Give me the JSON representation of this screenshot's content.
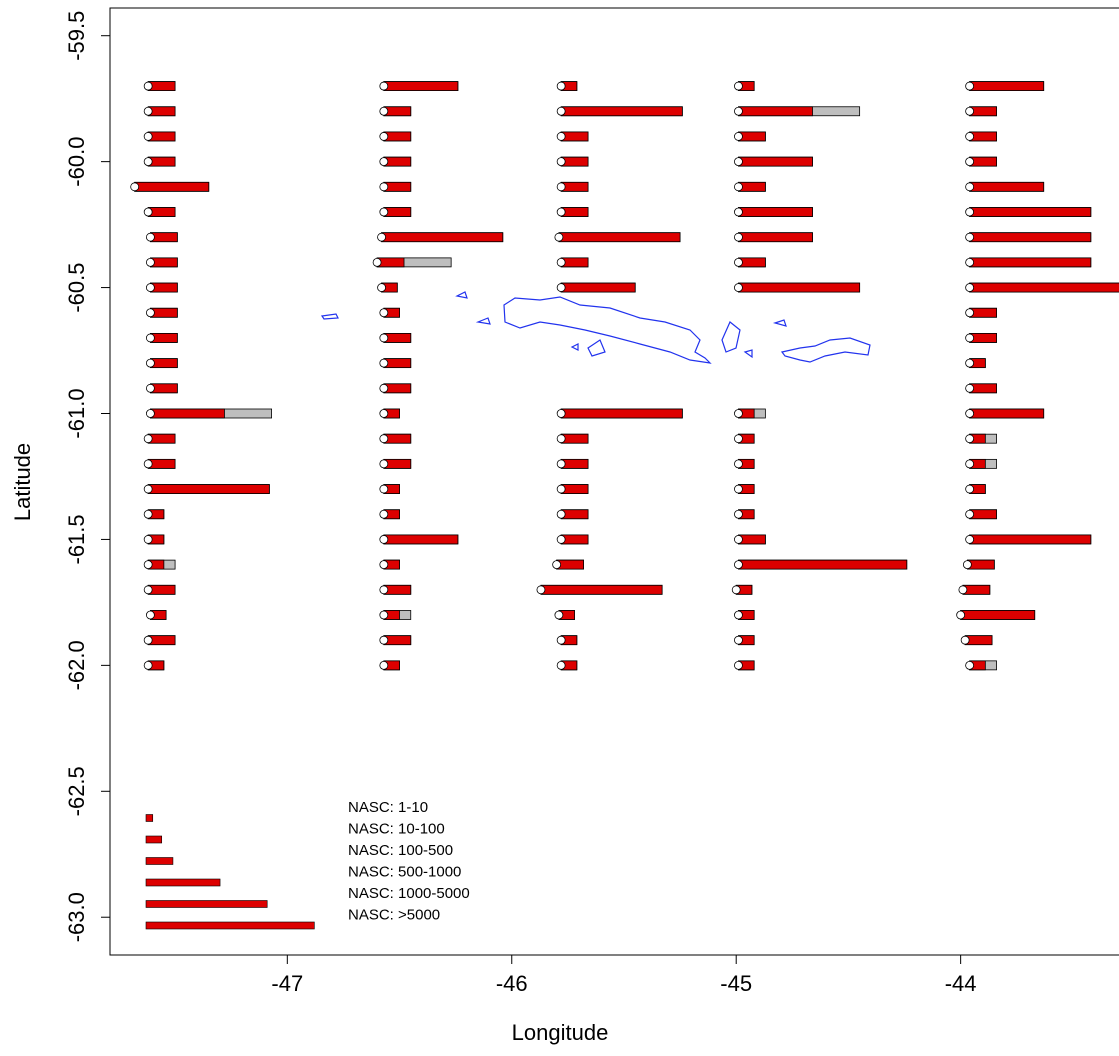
{
  "chart_data": {
    "type": "transect-bars",
    "x_label": "Longitude",
    "y_label": "Latitude",
    "xlim": [
      -47.79,
      -43.29
    ],
    "ylim": [
      -59.39,
      -63.15
    ],
    "xticks": [
      -47,
      -46,
      -45,
      -44
    ],
    "yticks": [
      -59.5,
      {
        "value": -60,
        "label": "-60.0"
      },
      -60.5,
      {
        "value": -61,
        "label": "-61.0"
      },
      -61.5,
      {
        "value": -62,
        "label": "-62.0"
      },
      -62.5,
      {
        "value": -63,
        "label": "-63.0"
      }
    ],
    "colors": {
      "primary": "#dd0000",
      "secondary": "#bebebe",
      "contour": "#2233ee"
    },
    "legend": [
      {
        "label": "NASC: 1-10",
        "length": 0.03
      },
      {
        "label": "NASC: 10-100",
        "length": 0.07
      },
      {
        "label": "NASC: 100-500",
        "length": 0.12
      },
      {
        "label": "NASC: 500-1000",
        "length": 0.33
      },
      {
        "label": "NASC: 1000-5000",
        "length": 0.54
      },
      {
        "label": "NASC: >5000",
        "length": 0.75
      }
    ],
    "transects": [
      {
        "lat": [
          -59.7,
          -59.8,
          -59.9,
          -60.0,
          -60.1,
          -60.2,
          -60.3,
          -60.4,
          -60.5,
          -60.6,
          -60.7,
          -60.8,
          -60.9,
          -61.0,
          -61.1,
          -61.2,
          -61.3,
          -61.4,
          -61.5,
          -61.6,
          -61.7,
          -61.8,
          -61.9,
          -62.0
        ],
        "lon": [
          -47.62,
          -47.62,
          -47.62,
          -47.62,
          -47.68,
          -47.62,
          -47.61,
          -47.61,
          -47.61,
          -47.61,
          -47.61,
          -47.61,
          -47.61,
          -47.61,
          -47.62,
          -47.62,
          -47.62,
          -47.62,
          -47.62,
          -47.62,
          -47.62,
          -47.61,
          -47.62,
          -47.62
        ],
        "red": [
          2,
          2,
          2,
          2,
          3,
          2,
          2,
          2,
          2,
          2,
          2,
          2,
          2,
          3,
          2,
          2,
          4,
          1,
          1,
          1,
          2,
          1,
          2,
          1
        ],
        "grey": [
          2,
          2,
          2,
          2,
          3,
          2,
          2,
          2,
          2,
          2,
          2,
          2,
          2,
          4,
          2,
          2,
          4,
          1,
          1,
          2,
          2,
          1,
          2,
          1
        ]
      },
      {
        "lat": [
          -59.7,
          -59.8,
          -59.9,
          -60.0,
          -60.1,
          -60.2,
          -60.3,
          -60.4,
          -60.5,
          -60.6,
          -60.7,
          -60.8,
          -60.9,
          -61.0,
          -61.1,
          -61.2,
          -61.3,
          -61.4,
          -61.5,
          -61.6,
          -61.7,
          -61.8,
          -61.9,
          -62.0
        ],
        "lon": [
          -46.57,
          -46.57,
          -46.57,
          -46.57,
          -46.57,
          -46.57,
          -46.58,
          -46.6,
          -46.58,
          -46.57,
          -46.57,
          -46.57,
          -46.57,
          -46.57,
          -46.57,
          -46.57,
          -46.57,
          -46.57,
          -46.57,
          -46.57,
          -46.57,
          -46.57,
          -46.57,
          -46.57
        ],
        "red": [
          3,
          2,
          2,
          2,
          2,
          2,
          4,
          2,
          1,
          1,
          2,
          2,
          2,
          1,
          2,
          2,
          1,
          1,
          3,
          1,
          2,
          1,
          2,
          1
        ],
        "grey": [
          3,
          2,
          2,
          2,
          2,
          2,
          4,
          3,
          1,
          1,
          2,
          2,
          2,
          1,
          2,
          2,
          1,
          1,
          3,
          1,
          2,
          2,
          2,
          1
        ]
      },
      {
        "lat": [
          -59.7,
          -59.8,
          -59.9,
          -60.0,
          -60.1,
          -60.2,
          -60.3,
          -60.4,
          -60.5
        ],
        "lon": [
          -45.78,
          -45.78,
          -45.78,
          -45.78,
          -45.78,
          -45.78,
          -45.79,
          -45.78,
          -45.78
        ],
        "red": [
          1,
          4,
          2,
          2,
          2,
          2,
          4,
          2,
          3
        ],
        "grey": [
          1,
          4,
          2,
          2,
          2,
          2,
          4,
          2,
          3
        ]
      },
      {
        "lat": [
          -61.0,
          -61.1,
          -61.2,
          -61.3,
          -61.4,
          -61.5,
          -61.6,
          -61.7,
          -61.8,
          -61.9,
          -62.0
        ],
        "lon": [
          -45.78,
          -45.78,
          -45.78,
          -45.78,
          -45.78,
          -45.78,
          -45.8,
          -45.87,
          -45.79,
          -45.78,
          -45.78
        ],
        "red": [
          4,
          2,
          2,
          2,
          2,
          2,
          2,
          4,
          1,
          1,
          1
        ],
        "grey": [
          4,
          2,
          2,
          2,
          2,
          2,
          2,
          4,
          1,
          1,
          1
        ]
      },
      {
        "lat": [
          -59.7,
          -59.8,
          -59.9,
          -60.0,
          -60.1,
          -60.2,
          -60.3,
          -60.4,
          -60.5
        ],
        "lon": [
          -44.99,
          -44.99,
          -44.99,
          -44.99,
          -44.99,
          -44.99,
          -44.99,
          -44.99,
          -44.99
        ],
        "red": [
          1,
          3,
          2,
          3,
          2,
          3,
          3,
          2,
          4
        ],
        "grey": [
          1,
          4,
          2,
          3,
          2,
          3,
          3,
          2,
          4
        ]
      },
      {
        "lat": [
          -61.0,
          -61.1,
          -61.2,
          -61.3,
          -61.4,
          -61.5,
          -61.6,
          -61.7,
          -61.8,
          -61.9,
          -62.0
        ],
        "lon": [
          -44.99,
          -44.99,
          -44.99,
          -44.99,
          -44.99,
          -44.99,
          -44.99,
          -45.0,
          -44.99,
          -44.99,
          -44.99
        ],
        "red": [
          1,
          1,
          1,
          1,
          1,
          2,
          5,
          1,
          1,
          1,
          1
        ],
        "grey": [
          2,
          1,
          1,
          1,
          1,
          2,
          5,
          1,
          1,
          1,
          1
        ]
      },
      {
        "lat": [
          -59.7,
          -59.8,
          -59.9,
          -60.0,
          -60.1,
          -60.2,
          -60.3,
          -60.4,
          -60.5,
          -60.6,
          -60.7,
          -60.8,
          -60.9,
          -61.0,
          -61.1,
          -61.2,
          -61.3,
          -61.4,
          -61.5,
          -61.6,
          -61.7,
          -61.8,
          -61.9,
          -62.0
        ],
        "lon": [
          -43.96,
          -43.96,
          -43.96,
          -43.96,
          -43.96,
          -43.96,
          -43.96,
          -43.96,
          -43.96,
          -43.96,
          -43.96,
          -43.96,
          -43.96,
          -43.96,
          -43.96,
          -43.96,
          -43.96,
          -43.96,
          -43.96,
          -43.97,
          -43.99,
          -44.0,
          -43.98,
          -43.96
        ],
        "red": [
          3,
          2,
          2,
          2,
          3,
          4,
          4,
          4,
          5,
          2,
          2,
          1,
          2,
          3,
          1,
          1,
          1,
          2,
          4,
          2,
          2,
          3,
          2,
          1
        ],
        "grey": [
          3,
          2,
          2,
          2,
          3,
          4,
          4,
          4,
          5,
          2,
          2,
          1,
          2,
          3,
          2,
          2,
          1,
          2,
          4,
          2,
          2,
          3,
          2,
          2
        ]
      }
    ]
  }
}
